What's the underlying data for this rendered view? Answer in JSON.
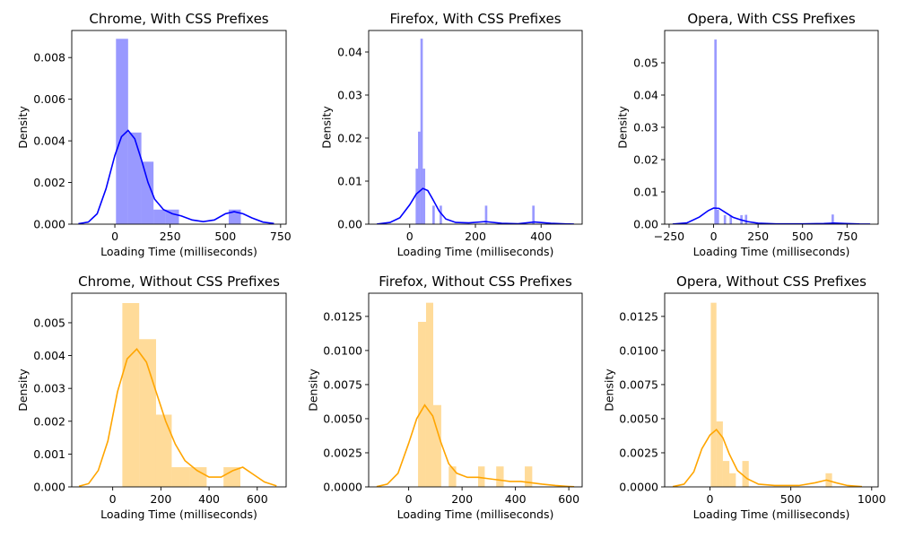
{
  "chart_data": [
    {
      "type": "histogram",
      "title": "Chrome, With CSS Prefixes",
      "xlabel": "Loading Time (milliseconds)",
      "ylabel": "Density",
      "xlim": [
        -195,
        775
      ],
      "ylim": [
        0,
        0.0093
      ],
      "xticks": [
        0,
        250,
        500,
        750
      ],
      "xtick_labels": [
        "0",
        "250",
        "500",
        "750"
      ],
      "yticks": [
        0,
        0.002,
        0.004,
        0.006,
        0.008
      ],
      "ytick_labels": [
        "0.000",
        "0.002",
        "0.004",
        "0.006",
        "0.008"
      ],
      "bar_color": "#0000ff",
      "bar_opacity": 0.4,
      "kde_color": "#0000ff",
      "bars": [
        {
          "x0": 5,
          "x1": 60,
          "h": 0.0089
        },
        {
          "x0": 60,
          "x1": 120,
          "h": 0.0044
        },
        {
          "x0": 120,
          "x1": 175,
          "h": 0.003
        },
        {
          "x0": 175,
          "x1": 230,
          "h": 0.0007
        },
        {
          "x0": 230,
          "x1": 290,
          "h": 0.0007
        },
        {
          "x0": 290,
          "x1": 345,
          "h": 0.0
        },
        {
          "x0": 345,
          "x1": 400,
          "h": 0.0
        },
        {
          "x0": 400,
          "x1": 460,
          "h": 0.0
        },
        {
          "x0": 460,
          "x1": 515,
          "h": 0.0
        },
        {
          "x0": 515,
          "x1": 570,
          "h": 0.0007
        }
      ],
      "kde": [
        [
          -165,
          2e-05
        ],
        [
          -120,
          0.0001
        ],
        [
          -80,
          0.0005
        ],
        [
          -40,
          0.0017
        ],
        [
          0,
          0.0033
        ],
        [
          30,
          0.0042
        ],
        [
          60,
          0.0045
        ],
        [
          90,
          0.0041
        ],
        [
          120,
          0.0031
        ],
        [
          150,
          0.002
        ],
        [
          180,
          0.0012
        ],
        [
          220,
          0.0007
        ],
        [
          260,
          0.0005
        ],
        [
          300,
          0.0004
        ],
        [
          350,
          0.0002
        ],
        [
          400,
          0.00012
        ],
        [
          450,
          0.0002
        ],
        [
          500,
          0.0005
        ],
        [
          540,
          0.0006
        ],
        [
          580,
          0.0005
        ],
        [
          620,
          0.0003
        ],
        [
          670,
          0.0001
        ],
        [
          720,
          3e-05
        ]
      ]
    },
    {
      "type": "histogram",
      "title": "Firefox, With CSS Prefixes",
      "xlabel": "Loading Time (milliseconds)",
      "ylabel": "Density",
      "xlim": [
        -125,
        525
      ],
      "ylim": [
        0,
        0.045
      ],
      "xticks": [
        0,
        200,
        400
      ],
      "xtick_labels": [
        "0",
        "200",
        "400"
      ],
      "yticks": [
        0,
        0.01,
        0.02,
        0.03,
        0.04
      ],
      "ytick_labels": [
        "0.00",
        "0.01",
        "0.02",
        "0.03",
        "0.04"
      ],
      "bar_color": "#0000ff",
      "bar_opacity": 0.4,
      "kde_color": "#0000ff",
      "bars": [
        {
          "x0": 18,
          "x1": 25.3,
          "h": 0.0129
        },
        {
          "x0": 25.3,
          "x1": 32.6,
          "h": 0.0215
        },
        {
          "x0": 32.6,
          "x1": 39.9,
          "h": 0.0431
        },
        {
          "x0": 39.9,
          "x1": 47.2,
          "h": 0.0129
        },
        {
          "x0": 69,
          "x1": 76.3,
          "h": 0.0043
        },
        {
          "x0": 91,
          "x1": 98.3,
          "h": 0.0043
        },
        {
          "x0": 229,
          "x1": 236.3,
          "h": 0.0043
        },
        {
          "x0": 373,
          "x1": 380.3,
          "h": 0.0043
        }
      ],
      "kde": [
        [
          -100,
          3e-05
        ],
        [
          -60,
          0.0004
        ],
        [
          -30,
          0.0015
        ],
        [
          0,
          0.0045
        ],
        [
          20,
          0.007
        ],
        [
          40,
          0.0083
        ],
        [
          55,
          0.0078
        ],
        [
          70,
          0.0058
        ],
        [
          90,
          0.003
        ],
        [
          110,
          0.0012
        ],
        [
          140,
          0.0004
        ],
        [
          180,
          0.0003
        ],
        [
          230,
          0.0006
        ],
        [
          280,
          0.0002
        ],
        [
          330,
          0.0001
        ],
        [
          380,
          0.0005
        ],
        [
          430,
          0.0002
        ],
        [
          480,
          5e-05
        ],
        [
          500,
          2e-05
        ]
      ]
    },
    {
      "type": "histogram",
      "title": "Opera, With CSS Prefixes",
      "xlabel": "Loading Time (milliseconds)",
      "ylabel": "Density",
      "xlim": [
        -275,
        925
      ],
      "ylim": [
        0,
        0.06
      ],
      "xticks": [
        -250,
        0,
        250,
        500,
        750
      ],
      "xtick_labels": [
        "−250",
        "0",
        "250",
        "500",
        "750"
      ],
      "yticks": [
        0,
        0.01,
        0.02,
        0.03,
        0.04,
        0.05
      ],
      "ytick_labels": [
        "0.00",
        "0.01",
        "0.02",
        "0.03",
        "0.04",
        "0.05"
      ],
      "bar_color": "#0000ff",
      "bar_opacity": 0.4,
      "kde_color": "#0000ff",
      "bars": [
        {
          "x0": 4,
          "x1": 17.3,
          "h": 0.0572
        },
        {
          "x0": 17.3,
          "x1": 30.6,
          "h": 0.0045
        },
        {
          "x0": 57,
          "x1": 70.3,
          "h": 0.0028
        },
        {
          "x0": 90,
          "x1": 103.3,
          "h": 0.0026
        },
        {
          "x0": 150,
          "x1": 163.3,
          "h": 0.0028
        },
        {
          "x0": 176,
          "x1": 189.3,
          "h": 0.0029
        },
        {
          "x0": 663,
          "x1": 676.3,
          "h": 0.003
        }
      ],
      "kde": [
        [
          -230,
          3e-05
        ],
        [
          -150,
          0.0004
        ],
        [
          -80,
          0.0022
        ],
        [
          -30,
          0.0042
        ],
        [
          0,
          0.005
        ],
        [
          30,
          0.0049
        ],
        [
          70,
          0.0035
        ],
        [
          110,
          0.0021
        ],
        [
          150,
          0.0014
        ],
        [
          190,
          0.0008
        ],
        [
          250,
          0.0003
        ],
        [
          350,
          0.0001
        ],
        [
          500,
          0.0001
        ],
        [
          620,
          0.0002
        ],
        [
          680,
          0.00035
        ],
        [
          740,
          0.0002
        ],
        [
          820,
          5e-05
        ],
        [
          880,
          2e-05
        ]
      ]
    },
    {
      "type": "histogram",
      "title": "Chrome, Without CSS Prefixes",
      "xlabel": "Loading Time (milliseconds)",
      "ylabel": "Density",
      "xlim": [
        -170,
        720
      ],
      "ylim": [
        0,
        0.0059
      ],
      "xticks": [
        0,
        200,
        400,
        600
      ],
      "xtick_labels": [
        "0",
        "200",
        "400",
        "600"
      ],
      "yticks": [
        0,
        0.001,
        0.002,
        0.003,
        0.004,
        0.005
      ],
      "ytick_labels": [
        "0.000",
        "0.001",
        "0.002",
        "0.003",
        "0.004",
        "0.005"
      ],
      "bar_color": "#ffa500",
      "bar_opacity": 0.4,
      "kde_color": "#ffa500",
      "bars": [
        {
          "x0": 40,
          "x1": 110,
          "h": 0.0056
        },
        {
          "x0": 110,
          "x1": 180,
          "h": 0.0045
        },
        {
          "x0": 180,
          "x1": 245,
          "h": 0.0022
        },
        {
          "x0": 245,
          "x1": 320,
          "h": 0.0006
        },
        {
          "x0": 320,
          "x1": 390,
          "h": 0.0006
        },
        {
          "x0": 390,
          "x1": 460,
          "h": 0.0
        },
        {
          "x0": 460,
          "x1": 530,
          "h": 0.0006
        }
      ],
      "kde": [
        [
          -140,
          2e-05
        ],
        [
          -100,
          0.0001
        ],
        [
          -60,
          0.0005
        ],
        [
          -20,
          0.0014
        ],
        [
          20,
          0.0029
        ],
        [
          60,
          0.0039
        ],
        [
          100,
          0.0042
        ],
        [
          140,
          0.0038
        ],
        [
          180,
          0.0029
        ],
        [
          220,
          0.002
        ],
        [
          260,
          0.0013
        ],
        [
          300,
          0.0008
        ],
        [
          350,
          0.0005
        ],
        [
          400,
          0.0003
        ],
        [
          450,
          0.0003
        ],
        [
          500,
          0.0005
        ],
        [
          540,
          0.0006
        ],
        [
          580,
          0.0004
        ],
        [
          630,
          0.00015
        ],
        [
          680,
          3e-05
        ]
      ]
    },
    {
      "type": "histogram",
      "title": "Firefox, Without CSS Prefixes",
      "xlabel": "Loading Time (milliseconds)",
      "ylabel": "Density",
      "xlim": [
        -150,
        650
      ],
      "ylim": [
        0,
        0.0142
      ],
      "xticks": [
        0,
        200,
        400,
        600
      ],
      "xtick_labels": [
        "0",
        "200",
        "400",
        "600"
      ],
      "yticks": [
        0,
        0.0025,
        0.005,
        0.0075,
        0.01,
        0.0125
      ],
      "ytick_labels": [
        "0.0000",
        "0.0025",
        "0.0050",
        "0.0075",
        "0.0100",
        "0.0125"
      ],
      "bar_color": "#ffa500",
      "bar_opacity": 0.4,
      "kde_color": "#ffa500",
      "bars": [
        {
          "x0": 35,
          "x1": 65,
          "h": 0.0121
        },
        {
          "x0": 65,
          "x1": 92,
          "h": 0.0135
        },
        {
          "x0": 92,
          "x1": 122,
          "h": 0.006
        },
        {
          "x0": 122,
          "x1": 150,
          "h": 0.0
        },
        {
          "x0": 150,
          "x1": 178,
          "h": 0.0015
        },
        {
          "x0": 178,
          "x1": 260,
          "h": 0.0
        },
        {
          "x0": 260,
          "x1": 285,
          "h": 0.0015
        },
        {
          "x0": 285,
          "x1": 328,
          "h": 0.0
        },
        {
          "x0": 328,
          "x1": 356,
          "h": 0.0015
        },
        {
          "x0": 356,
          "x1": 435,
          "h": 0.0
        },
        {
          "x0": 435,
          "x1": 463,
          "h": 0.0015
        }
      ],
      "kde": [
        [
          -120,
          2e-05
        ],
        [
          -80,
          0.0002
        ],
        [
          -40,
          0.001
        ],
        [
          0,
          0.0032
        ],
        [
          30,
          0.005
        ],
        [
          60,
          0.006
        ],
        [
          90,
          0.0052
        ],
        [
          120,
          0.0033
        ],
        [
          150,
          0.0017
        ],
        [
          180,
          0.001
        ],
        [
          220,
          0.0007
        ],
        [
          260,
          0.0007
        ],
        [
          300,
          0.0006
        ],
        [
          340,
          0.0005
        ],
        [
          380,
          0.0004
        ],
        [
          420,
          0.0004
        ],
        [
          460,
          0.0003
        ],
        [
          500,
          0.0002
        ],
        [
          550,
          0.0001
        ],
        [
          600,
          3e-05
        ],
        [
          620,
          1e-05
        ]
      ]
    },
    {
      "type": "histogram",
      "title": "Opera, Without CSS Prefixes",
      "xlabel": "Loading Time (milliseconds)",
      "ylabel": "Density",
      "xlim": [
        -280,
        1040
      ],
      "ylim": [
        0,
        0.0142
      ],
      "xticks": [
        0,
        500,
        1000
      ],
      "xtick_labels": [
        "0",
        "500",
        "1000"
      ],
      "yticks": [
        0,
        0.0025,
        0.005,
        0.0075,
        0.01,
        0.0125
      ],
      "ytick_labels": [
        "0.0000",
        "0.0025",
        "0.0050",
        "0.0075",
        "0.0100",
        "0.0125"
      ],
      "bar_color": "#ffa500",
      "bar_opacity": 0.4,
      "kde_color": "#ffa500",
      "bars": [
        {
          "x0": 5,
          "x1": 40,
          "h": 0.0135
        },
        {
          "x0": 40,
          "x1": 80,
          "h": 0.0048
        },
        {
          "x0": 80,
          "x1": 120,
          "h": 0.0019
        },
        {
          "x0": 120,
          "x1": 160,
          "h": 0.001
        },
        {
          "x0": 160,
          "x1": 200,
          "h": 0.0
        },
        {
          "x0": 200,
          "x1": 240,
          "h": 0.0019
        },
        {
          "x0": 715,
          "x1": 755,
          "h": 0.001
        }
      ],
      "kde": [
        [
          -230,
          2e-05
        ],
        [
          -160,
          0.0002
        ],
        [
          -100,
          0.0011
        ],
        [
          -50,
          0.0028
        ],
        [
          0,
          0.0038
        ],
        [
          40,
          0.0042
        ],
        [
          80,
          0.0036
        ],
        [
          120,
          0.0024
        ],
        [
          170,
          0.0012
        ],
        [
          230,
          0.0006
        ],
        [
          300,
          0.0002
        ],
        [
          400,
          0.0001
        ],
        [
          550,
          0.0001
        ],
        [
          650,
          0.0003
        ],
        [
          720,
          0.0005
        ],
        [
          780,
          0.0003
        ],
        [
          850,
          0.0001
        ],
        [
          940,
          2e-05
        ]
      ]
    }
  ]
}
